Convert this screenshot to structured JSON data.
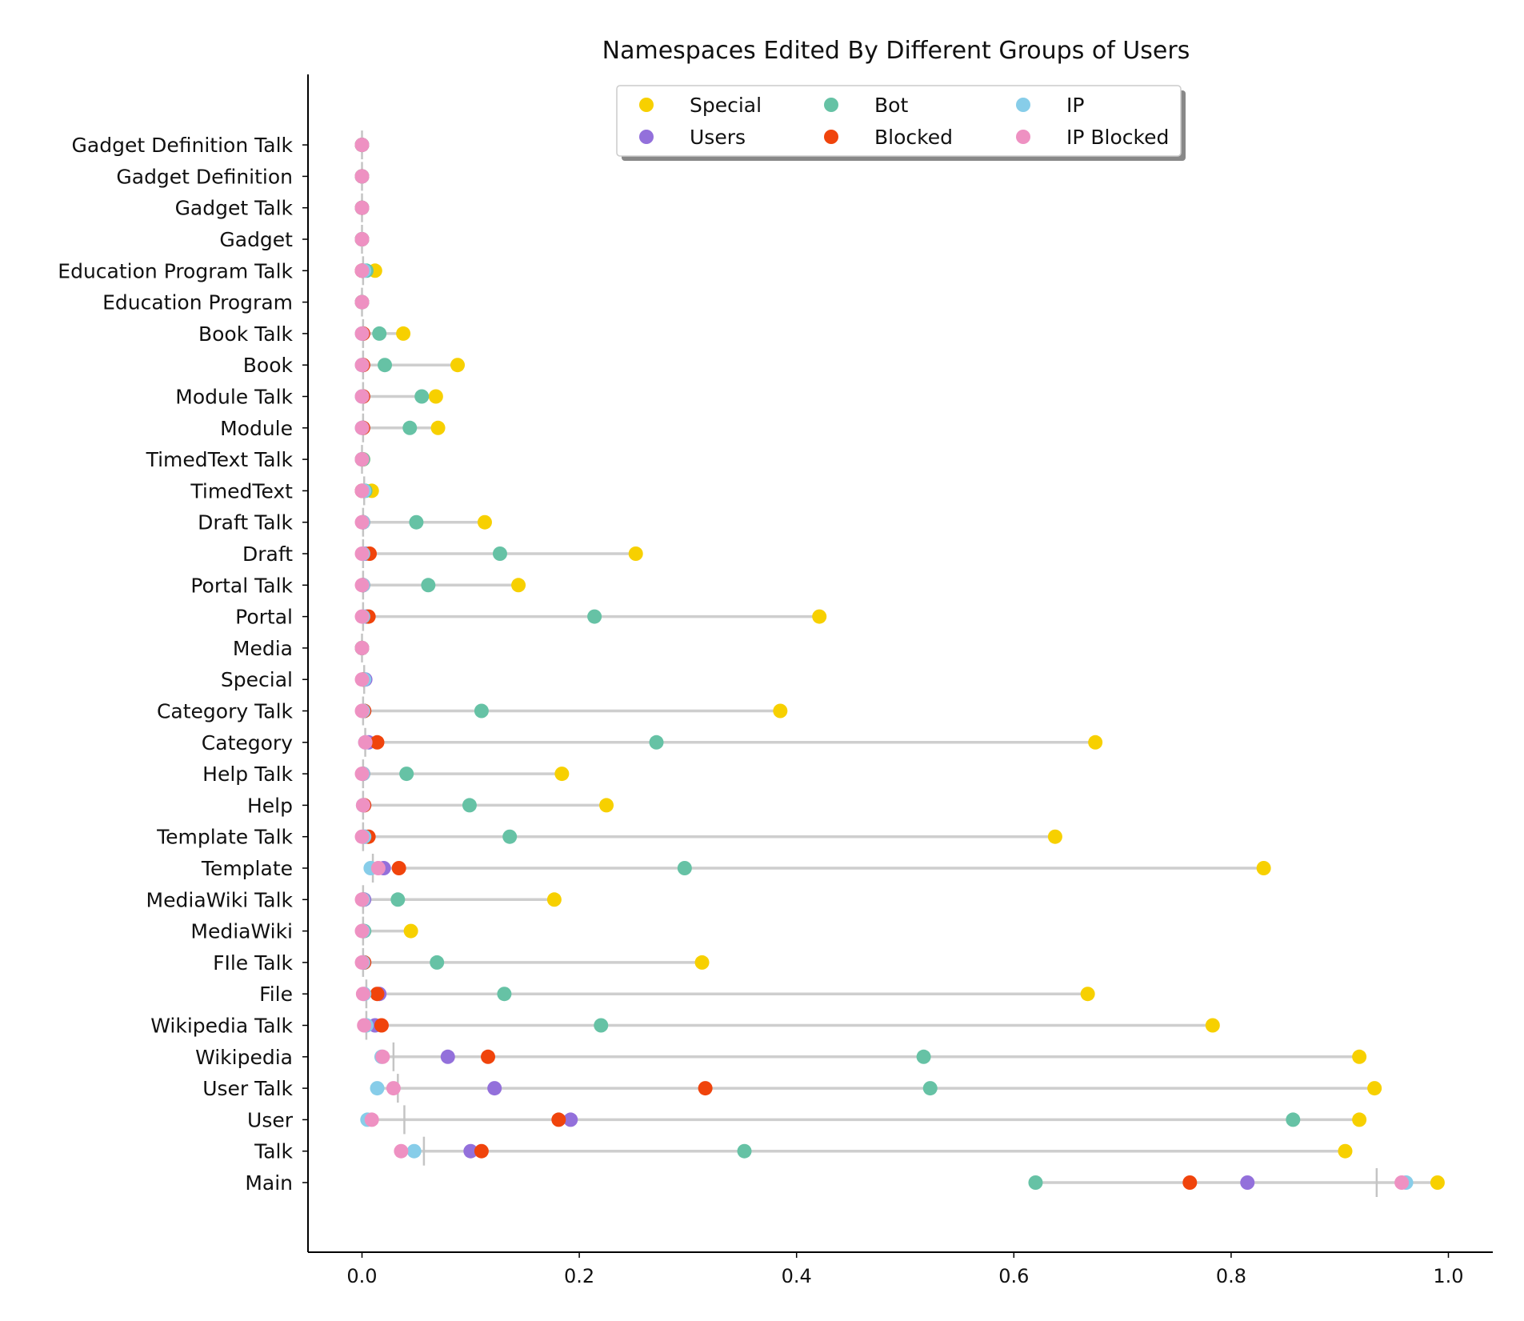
{
  "chart_data": {
    "type": "scatter",
    "title": "Namespaces Edited By Different Groups of Users",
    "xlabel": "",
    "ylabel": "",
    "xlim": [
      -0.05,
      1.04
    ],
    "xticks": [
      "0.0",
      "0.2",
      "0.4",
      "0.6",
      "0.8",
      "1.0"
    ],
    "grid": false,
    "legend_position": "top-center",
    "categories": [
      "Main",
      "Talk",
      "User",
      "User Talk",
      "Wikipedia",
      "Wikipedia Talk",
      "File",
      "FIle Talk",
      "MediaWiki",
      "MediaWiki Talk",
      "Template",
      "Template Talk",
      "Help",
      "Help Talk",
      "Category",
      "Category Talk",
      "Special",
      "Media",
      "Portal",
      "Portal Talk",
      "Draft",
      "Draft Talk",
      "TimedText",
      "TimedText Talk",
      "Module",
      "Module Talk",
      "Book",
      "Book Talk",
      "Education Program",
      "Education Program Talk",
      "Gadget",
      "Gadget Talk",
      "Gadget Definition",
      "Gadget Definition Talk"
    ],
    "series": [
      {
        "name": "Special",
        "color": "#f7d000",
        "values": [
          0.99,
          0.905,
          0.918,
          0.932,
          0.918,
          0.783,
          0.668,
          0.313,
          0.045,
          0.177,
          0.83,
          0.638,
          0.225,
          0.184,
          0.675,
          0.385,
          0.002,
          0.0,
          0.421,
          0.144,
          0.252,
          0.113,
          0.009,
          0.001,
          0.07,
          0.068,
          0.088,
          0.038,
          0.0,
          0.012,
          0.0,
          0.0,
          0.0,
          0.0
        ]
      },
      {
        "name": "Users",
        "color": "#9370db",
        "values": [
          0.815,
          0.1,
          0.192,
          0.122,
          0.079,
          0.012,
          0.016,
          0.002,
          0.001,
          0.002,
          0.02,
          0.003,
          0.002,
          0.001,
          0.006,
          0.002,
          0.003,
          0.0,
          0.004,
          0.001,
          0.003,
          0.001,
          0.0,
          0.0,
          0.001,
          0.001,
          0.001,
          0.001,
          0.0,
          0.0,
          0.0,
          0.0,
          0.0,
          0.0
        ]
      },
      {
        "name": "Bot",
        "color": "#66c2a5",
        "values": [
          0.62,
          0.352,
          0.857,
          0.523,
          0.517,
          0.22,
          0.131,
          0.069,
          0.002,
          0.033,
          0.297,
          0.136,
          0.099,
          0.041,
          0.271,
          0.11,
          0.001,
          0.0,
          0.214,
          0.061,
          0.127,
          0.05,
          0.003,
          0.001,
          0.044,
          0.055,
          0.021,
          0.016,
          0.0,
          0.004,
          0.0,
          0.0,
          0.0,
          0.0
        ]
      },
      {
        "name": "Blocked",
        "color": "#f0440c",
        "values": [
          0.762,
          0.11,
          0.181,
          0.316,
          0.116,
          0.018,
          0.014,
          0.002,
          0.001,
          0.001,
          0.034,
          0.006,
          0.002,
          0.001,
          0.014,
          0.002,
          0.001,
          0.0,
          0.006,
          0.001,
          0.007,
          0.001,
          0.0,
          0.0,
          0.001,
          0.001,
          0.001,
          0.001,
          0.0,
          0.0,
          0.0,
          0.0,
          0.0,
          0.0
        ]
      },
      {
        "name": "IP",
        "color": "#87cde9",
        "values": [
          0.961,
          0.048,
          0.005,
          0.014,
          0.018,
          0.004,
          0.002,
          0.001,
          0.001,
          0.001,
          0.008,
          0.002,
          0.001,
          0.001,
          0.003,
          0.001,
          0.002,
          0.0,
          0.001,
          0.001,
          0.001,
          0.001,
          0.002,
          0.0,
          0.0,
          0.0,
          0.0,
          0.0,
          0.0,
          0.002,
          0.0,
          0.0,
          0.0,
          0.0
        ]
      },
      {
        "name": "IP Blocked",
        "color": "#ee91c2",
        "values": [
          0.957,
          0.036,
          0.009,
          0.029,
          0.019,
          0.002,
          0.001,
          0.0,
          0.0,
          0.0,
          0.015,
          0.0,
          0.001,
          0.0,
          0.003,
          0.0,
          0.0,
          0.0,
          0.0,
          0.0,
          0.0,
          0.0,
          0.0,
          0.0,
          0.0,
          0.0,
          0.0,
          0.0,
          0.0,
          0.0,
          0.0,
          0.0,
          0.0,
          0.0
        ]
      }
    ],
    "means": [
      0.934,
      0.057,
      0.039,
      0.033,
      0.029,
      0.004,
      0.004,
      0.001,
      0.001,
      0.001,
      0.01,
      0.001,
      0.001,
      0.001,
      0.003,
      0.001,
      0.002,
      0.0,
      0.001,
      0.001,
      0.001,
      0.001,
      0.002,
      0.0,
      0.001,
      0.001,
      0.001,
      0.001,
      0.0,
      0.001,
      0.0,
      0.0,
      0.0,
      0.0
    ]
  }
}
